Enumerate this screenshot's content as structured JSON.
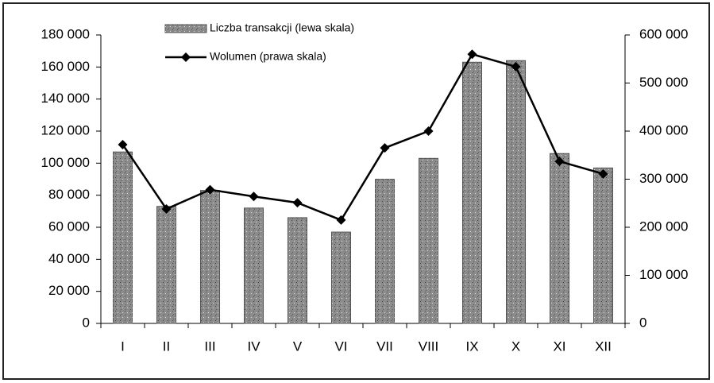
{
  "chart_data": {
    "type": "bar_line",
    "categories": [
      "I",
      "II",
      "III",
      "IV",
      "V",
      "VI",
      "VII",
      "VIII",
      "IX",
      "X",
      "XI",
      "XII"
    ],
    "series": [
      {
        "name": "Liczba transakcji (lewa skala)",
        "color": "#8c8c8c",
        "type": "bar",
        "axis": "y",
        "values": [
          107000,
          73000,
          83000,
          72000,
          66000,
          57000,
          90000,
          103000,
          163000,
          164000,
          106000,
          97000
        ]
      },
      {
        "name": "Wolumen (prawa skala)",
        "color": "#000000",
        "type": "line",
        "axis": "y2",
        "values": [
          372000,
          238000,
          278000,
          264000,
          251000,
          215000,
          365000,
          400000,
          560000,
          534000,
          337000,
          311000
        ]
      }
    ],
    "ylim": [
      0,
      180000
    ],
    "yticks": [
      0,
      {
        "value": 20000,
        "label": "20 000"
      },
      {
        "value": 40000,
        "label": "40 000"
      },
      {
        "value": 60000,
        "label": "60 000"
      },
      {
        "value": 80000,
        "label": "80 000"
      },
      {
        "value": 100000,
        "label": "100 000"
      },
      {
        "value": 120000,
        "label": "120 000"
      },
      {
        "value": 140000,
        "label": "140 000"
      },
      {
        "value": 160000,
        "label": "160 000"
      },
      {
        "value": 180000,
        "label": "180 000"
      }
    ],
    "y2lim": [
      0,
      600000
    ],
    "y2ticks": [
      0,
      {
        "value": 100000,
        "label": "100 000"
      },
      {
        "value": 200000,
        "label": "200 000"
      },
      {
        "value": 300000,
        "label": "300 000"
      },
      {
        "value": 400000,
        "label": "400 000"
      },
      {
        "value": 500000,
        "label": "500 000"
      },
      {
        "value": 600000,
        "label": "600 000"
      }
    ],
    "grid": false,
    "legend": "top"
  }
}
